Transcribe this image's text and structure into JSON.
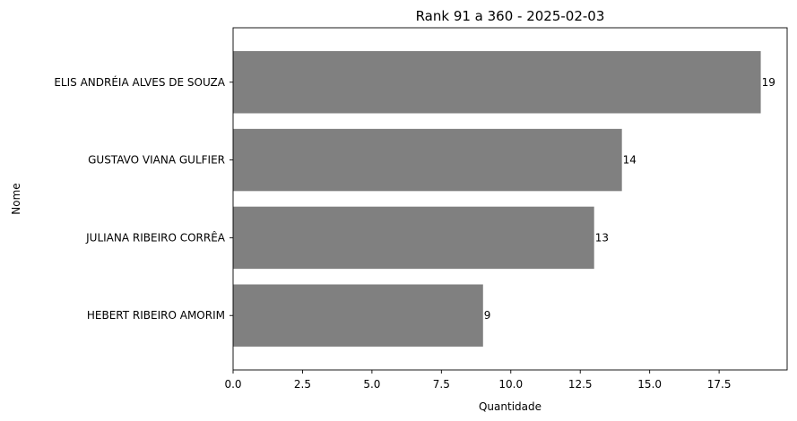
{
  "chart_data": {
    "type": "bar",
    "orientation": "horizontal",
    "title": "Rank 91 a 360 - 2025-02-03",
    "xlabel": "Quantidade",
    "ylabel": "Nome",
    "categories": [
      "ELIS ANDRÉIA ALVES DE SOUZA",
      "GUSTAVO VIANA GULFIER",
      "JULIANA RIBEIRO CORRÊA",
      "HEBERT RIBEIRO AMORIM"
    ],
    "values": [
      19,
      14,
      13,
      9
    ],
    "data_labels": [
      "19",
      "14",
      "13",
      "9"
    ],
    "xlim": [
      0,
      19.95
    ],
    "xticks": [
      0,
      2.5,
      5,
      7.5,
      10,
      12.5,
      15,
      17.5
    ],
    "xtick_labels": [
      "0.0",
      "2.5",
      "5.0",
      "7.5",
      "10.0",
      "12.5",
      "15.0",
      "17.5"
    ],
    "bar_color": "#808080",
    "grid": false,
    "legend": "none"
  }
}
